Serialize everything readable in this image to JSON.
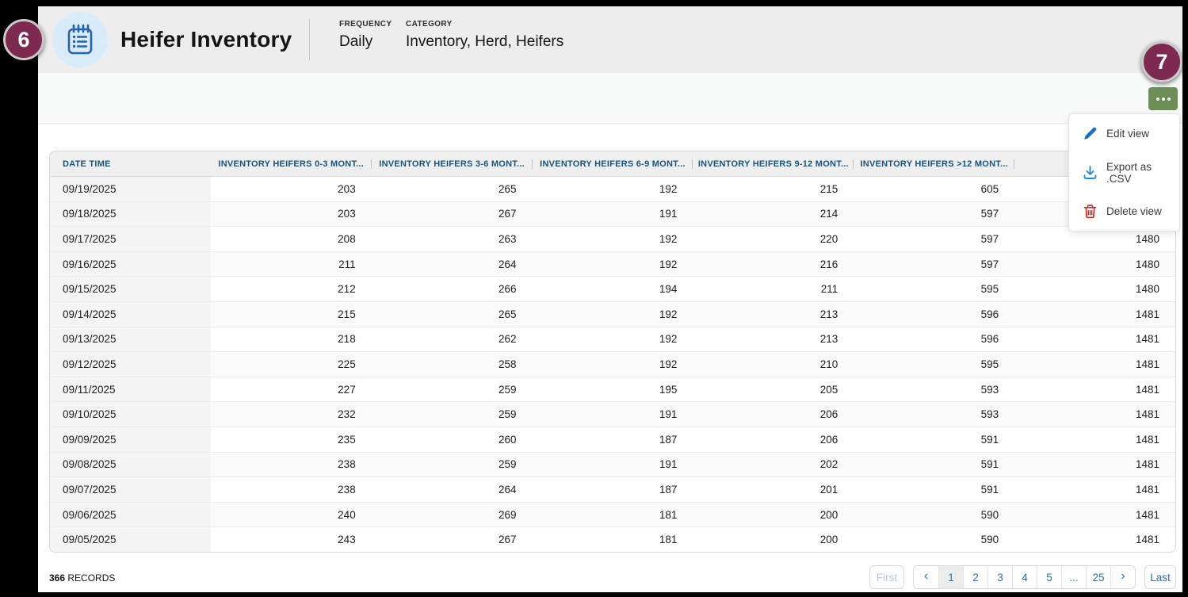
{
  "annotations": {
    "left_badge": "6",
    "right_badge": "7"
  },
  "header": {
    "icon": "clipboard-list-icon",
    "title": "Heifer Inventory",
    "frequency_label": "FREQUENCY",
    "frequency_value": "Daily",
    "category_label": "CATEGORY",
    "category_value": "Inventory, Herd, Heifers"
  },
  "toolbar": {
    "more_icon": "ellipsis-icon"
  },
  "menu": {
    "items": [
      {
        "icon": "pencil-icon",
        "label": "Edit view"
      },
      {
        "icon": "download-icon",
        "label": "Export as .CSV"
      },
      {
        "icon": "trash-icon",
        "label": "Delete view"
      }
    ]
  },
  "table": {
    "columns": [
      "DATE TIME",
      "INVENTORY HEIFERS 0-3 MONT...",
      "INVENTORY HEIFERS 3-6 MONT...",
      "INVENTORY HEIFERS 6-9 MONT...",
      "INVENTORY HEIFERS 9-12 MONT...",
      "INVENTORY HEIFERS >12 MONT...",
      ""
    ],
    "rows": [
      [
        "09/19/2025",
        "203",
        "265",
        "192",
        "215",
        "605",
        ""
      ],
      [
        "09/18/2025",
        "203",
        "267",
        "191",
        "214",
        "597",
        ""
      ],
      [
        "09/17/2025",
        "208",
        "263",
        "192",
        "220",
        "597",
        "1480"
      ],
      [
        "09/16/2025",
        "211",
        "264",
        "192",
        "216",
        "597",
        "1480"
      ],
      [
        "09/15/2025",
        "212",
        "266",
        "194",
        "211",
        "595",
        "1480"
      ],
      [
        "09/14/2025",
        "215",
        "265",
        "192",
        "213",
        "596",
        "1481"
      ],
      [
        "09/13/2025",
        "218",
        "262",
        "192",
        "213",
        "596",
        "1481"
      ],
      [
        "09/12/2025",
        "225",
        "258",
        "192",
        "210",
        "595",
        "1481"
      ],
      [
        "09/11/2025",
        "227",
        "259",
        "195",
        "205",
        "593",
        "1481"
      ],
      [
        "09/10/2025",
        "232",
        "259",
        "191",
        "206",
        "593",
        "1481"
      ],
      [
        "09/09/2025",
        "235",
        "260",
        "187",
        "206",
        "591",
        "1481"
      ],
      [
        "09/08/2025",
        "238",
        "259",
        "191",
        "202",
        "591",
        "1481"
      ],
      [
        "09/07/2025",
        "238",
        "264",
        "187",
        "201",
        "591",
        "1481"
      ],
      [
        "09/06/2025",
        "240",
        "269",
        "181",
        "200",
        "590",
        "1481"
      ],
      [
        "09/05/2025",
        "243",
        "267",
        "181",
        "200",
        "590",
        "1481"
      ]
    ]
  },
  "footer": {
    "records_count": "366",
    "records_label": "RECORDS",
    "pagination": {
      "first": "First",
      "prev": "‹",
      "pages": [
        "1",
        "2",
        "3",
        "4",
        "5",
        "...",
        "25"
      ],
      "next": "›",
      "last": "Last",
      "active_page": "1"
    }
  },
  "colors": {
    "badge_maroon": "#7e2950",
    "more_button_green": "#6d8e57",
    "header_icon_blue": "#2265a8",
    "icon_circle_blue": "#d9eaf8",
    "column_header_blue": "#15537d",
    "pagination_blue": "#2e6da4",
    "menu_action_blue": "#1c6fbf",
    "menu_delete_red": "#c5302c",
    "appbar_gray": "#ededed"
  }
}
